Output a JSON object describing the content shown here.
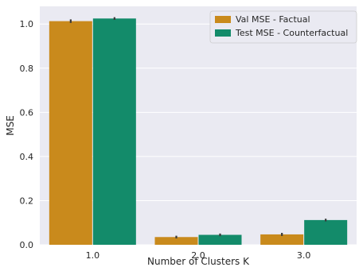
{
  "chart_data": {
    "type": "bar",
    "xlabel": "Number of Clusters K",
    "ylabel": "MSE",
    "categories": [
      "1.0",
      "2.0",
      "3.0"
    ],
    "ylim": [
      0,
      1.08
    ],
    "yticks": [
      0.0,
      0.2,
      0.4,
      0.6,
      0.8,
      1.0
    ],
    "ytick_labels": [
      "0.0",
      "0.2",
      "0.4",
      "0.6",
      "0.8",
      "1.0"
    ],
    "grid": true,
    "legend_position": "top-right",
    "series": [
      {
        "name": "Val MSE - Factual",
        "color": "#C98A1C",
        "values": [
          1.013,
          0.035,
          0.047
        ],
        "error": [
          0.008,
          0.006,
          0.007
        ]
      },
      {
        "name": "Test MSE - Counterfactual",
        "color": "#138B6A",
        "values": [
          1.025,
          0.045,
          0.112
        ],
        "error": [
          0.006,
          0.006,
          0.006
        ]
      }
    ]
  }
}
